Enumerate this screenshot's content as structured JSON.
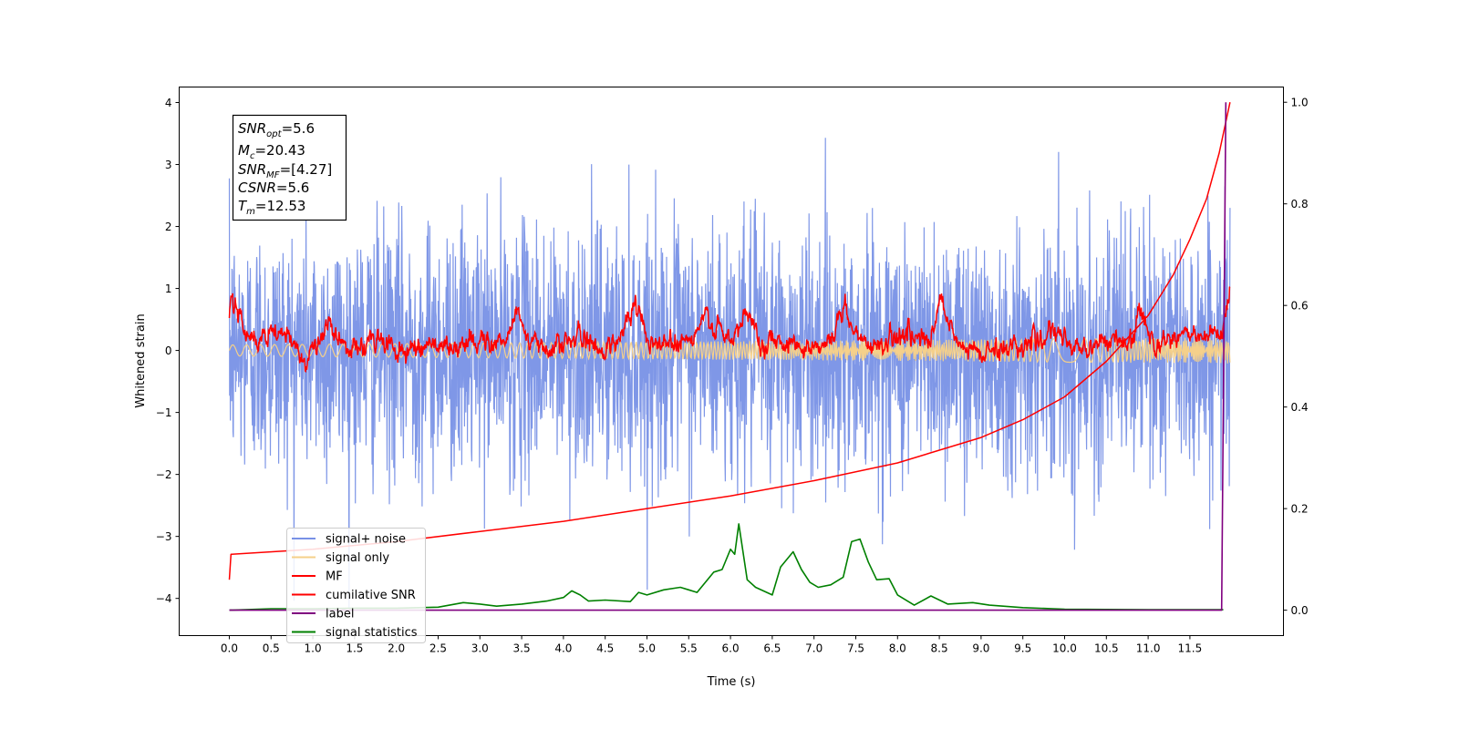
{
  "chart_data": {
    "type": "line",
    "xlabel": "Time (s)",
    "ylabel": "Whitened strain",
    "xlim": [
      -0.6,
      12.62
    ],
    "ylim": [
      -4.6,
      4.25
    ],
    "y2lim": [
      -0.05,
      1.03
    ],
    "xticks": [
      "0.0",
      "0.5",
      "1.0",
      "1.5",
      "2.0",
      "2.5",
      "3.0",
      "3.5",
      "4.0",
      "4.5",
      "5.0",
      "5.5",
      "6.0",
      "6.5",
      "7.0",
      "7.5",
      "8.0",
      "8.5",
      "9.0",
      "9.5",
      "10.0",
      "10.5",
      "11.0",
      "11.5"
    ],
    "yticks": [
      "−4",
      "−3",
      "−2",
      "−1",
      "0",
      "1",
      "2",
      "3",
      "4"
    ],
    "y2ticks": [
      "0.0",
      "0.2",
      "0.4",
      "0.6",
      "0.8",
      "1.0"
    ],
    "grid": false,
    "legend_position": "lower-left",
    "legend": [
      {
        "label": "signal+ noise",
        "color": "#7891e6"
      },
      {
        "label": "signal only",
        "color": "#f5d08a"
      },
      {
        "label": "MF",
        "color": "#ff0000"
      },
      {
        "label": "cumilative SNR",
        "color": "#ff0000"
      },
      {
        "label": "label",
        "color": "#800080"
      },
      {
        "label": "signal statistics",
        "color": "#008000"
      }
    ],
    "annotation": {
      "snr_opt": {
        "main": "SNR",
        "sub": "opt",
        "value": "=5.6"
      },
      "mc": {
        "main": "M",
        "sub": "c",
        "value": "=20.43"
      },
      "snr_mf": {
        "main": "SNR",
        "sub": "MF",
        "value": "=[4.27]"
      },
      "csnr": {
        "main": "CSNR",
        "value": "=5.6"
      },
      "tm": {
        "main": "T",
        "sub": "m",
        "value": "=12.53"
      }
    },
    "series": [
      {
        "name": "signal+ noise",
        "axis": "left",
        "color": "#7891e6",
        "approx_envelope": {
          "x_range": [
            0,
            11.98
          ],
          "std": 1.0,
          "typical_range": [
            -2.8,
            2.9
          ],
          "max": 3.85,
          "min": -4.15
        }
      },
      {
        "name": "signal only",
        "axis": "left",
        "color": "#f5d08a",
        "approx_amplitude": 0.15
      },
      {
        "name": "MF",
        "axis": "left",
        "color": "#ff0000",
        "x": [
          0.0,
          0.02,
          0.3,
          0.6,
          0.9,
          1.2,
          1.5,
          1.8,
          2.1,
          2.4,
          2.7,
          3.0,
          3.3,
          3.45,
          3.6,
          3.9,
          4.2,
          4.5,
          4.7,
          4.85,
          5.1,
          5.4,
          5.55,
          5.7,
          6.0,
          6.2,
          6.4,
          6.6,
          6.9,
          7.2,
          7.35,
          7.5,
          7.8,
          8.1,
          8.4,
          8.5,
          8.7,
          9.0,
          9.3,
          9.6,
          9.9,
          10.2,
          10.5,
          10.8,
          10.9,
          11.1,
          11.4,
          11.7,
          11.9,
          11.98
        ],
        "y": [
          0.5,
          0.95,
          0.1,
          0.3,
          -0.1,
          0.35,
          0.0,
          0.2,
          -0.05,
          0.15,
          0.0,
          0.2,
          0.1,
          0.7,
          0.05,
          0.1,
          0.2,
          0.0,
          0.3,
          0.7,
          0.1,
          0.2,
          0.15,
          0.55,
          0.1,
          0.6,
          0.1,
          0.2,
          0.05,
          0.15,
          0.7,
          0.2,
          0.1,
          0.3,
          0.1,
          0.8,
          0.1,
          -0.05,
          0.05,
          0.15,
          0.25,
          0.0,
          0.2,
          0.05,
          0.65,
          0.1,
          0.3,
          0.15,
          0.3,
          0.85
        ]
      },
      {
        "name": "cumilative SNR",
        "axis": "right",
        "color": "#ff0000",
        "x": [
          0.0,
          0.02,
          1.0,
          2.0,
          3.0,
          4.0,
          5.0,
          6.0,
          7.0,
          8.0,
          9.0,
          9.5,
          10.0,
          10.5,
          11.0,
          11.3,
          11.5,
          11.7,
          11.85,
          11.98
        ],
        "y": [
          0.06,
          0.11,
          0.12,
          0.135,
          0.155,
          0.175,
          0.2,
          0.225,
          0.255,
          0.29,
          0.34,
          0.375,
          0.42,
          0.49,
          0.58,
          0.66,
          0.73,
          0.81,
          0.9,
          1.0
        ]
      },
      {
        "name": "label",
        "axis": "right",
        "color": "#800080",
        "x": [
          0.0,
          11.88,
          11.93
        ],
        "y": [
          0.0,
          0.0,
          1.0
        ]
      },
      {
        "name": "signal statistics",
        "axis": "right",
        "color": "#008000",
        "x": [
          0.0,
          0.5,
          1.0,
          1.5,
          2.0,
          2.5,
          2.8,
          3.0,
          3.2,
          3.5,
          3.8,
          4.0,
          4.1,
          4.2,
          4.3,
          4.5,
          4.8,
          4.9,
          5.0,
          5.2,
          5.4,
          5.5,
          5.6,
          5.8,
          5.9,
          6.0,
          6.05,
          6.1,
          6.2,
          6.3,
          6.5,
          6.6,
          6.75,
          6.85,
          6.95,
          7.05,
          7.2,
          7.35,
          7.45,
          7.55,
          7.65,
          7.75,
          7.9,
          8.0,
          8.2,
          8.4,
          8.6,
          8.9,
          9.1,
          9.5,
          10.0,
          11.0,
          11.5,
          11.9
        ],
        "y": [
          0.0,
          0.003,
          0.003,
          0.004,
          0.004,
          0.006,
          0.015,
          0.012,
          0.008,
          0.012,
          0.018,
          0.025,
          0.038,
          0.03,
          0.018,
          0.02,
          0.017,
          0.035,
          0.03,
          0.04,
          0.045,
          0.04,
          0.035,
          0.075,
          0.08,
          0.12,
          0.11,
          0.17,
          0.06,
          0.045,
          0.03,
          0.085,
          0.115,
          0.08,
          0.055,
          0.045,
          0.05,
          0.065,
          0.135,
          0.14,
          0.095,
          0.06,
          0.062,
          0.03,
          0.01,
          0.028,
          0.012,
          0.015,
          0.01,
          0.005,
          0.002,
          0.001,
          0.001,
          0.001
        ]
      }
    ]
  }
}
